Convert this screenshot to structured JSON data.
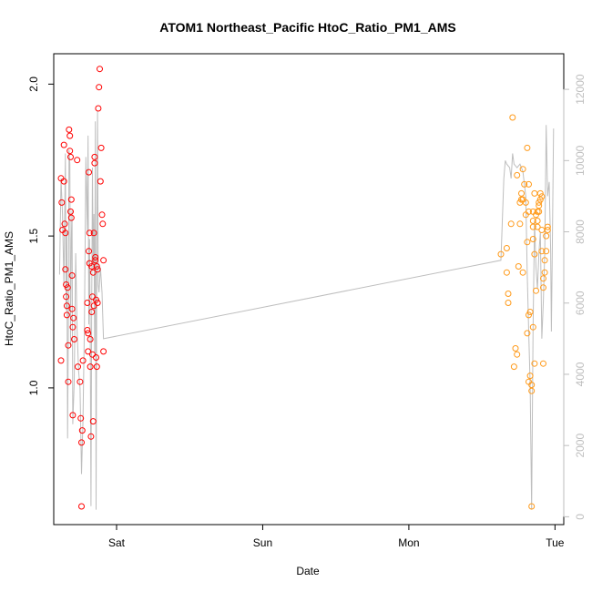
{
  "chart_data": {
    "type": "scatter",
    "title": "ATOM1 Northeast_Pacific HtoC_Ratio_PM1_AMS",
    "xlabel": "Date",
    "ylabel": "HtoC_Ratio_PM1_AMS",
    "x_ticks": [
      "Sat",
      "Sun",
      "Mon",
      "Tue"
    ],
    "y_ticks": [
      "1.0",
      "1.5",
      "2.0"
    ],
    "y_right_ticks": [
      "0",
      "2000",
      "4000",
      "6000",
      "8000",
      "10000",
      "12000"
    ],
    "xlim": [
      -0.43,
      3.06
    ],
    "ylim": [
      0.55,
      2.1
    ],
    "y_right_lim": [
      -220,
      13000
    ],
    "grid": false,
    "colors": {
      "series1": "#ff0000",
      "series2": "#ff9a1a",
      "line": "#bebebe",
      "axis": "#000000",
      "right_axis": "#bebebe"
    },
    "series": [
      {
        "points": [
          [
            -0.38,
            1.09
          ],
          [
            -0.38,
            1.69
          ],
          [
            -0.375,
            1.61
          ],
          [
            -0.37,
            1.52
          ],
          [
            -0.36,
            1.8
          ],
          [
            -0.36,
            1.68
          ],
          [
            -0.355,
            1.54
          ],
          [
            -0.35,
            1.39
          ],
          [
            -0.35,
            1.51
          ],
          [
            -0.345,
            1.34
          ],
          [
            -0.345,
            1.3
          ],
          [
            -0.34,
            1.24
          ],
          [
            -0.34,
            1.27
          ],
          [
            -0.335,
            1.33
          ],
          [
            -0.33,
            1.14
          ],
          [
            -0.33,
            1.02
          ],
          [
            -0.325,
            1.85
          ],
          [
            -0.32,
            1.83
          ],
          [
            -0.32,
            1.78
          ],
          [
            -0.315,
            1.76
          ],
          [
            -0.315,
            1.58
          ],
          [
            -0.31,
            1.56
          ],
          [
            -0.31,
            1.62
          ],
          [
            -0.305,
            1.37
          ],
          [
            -0.305,
            1.26
          ],
          [
            -0.3,
            0.91
          ],
          [
            -0.3,
            1.2
          ],
          [
            -0.295,
            1.23
          ],
          [
            -0.29,
            1.16
          ],
          [
            -0.27,
            1.75
          ],
          [
            -0.265,
            1.07
          ],
          [
            -0.25,
            1.02
          ],
          [
            -0.245,
            0.9
          ],
          [
            -0.24,
            0.61
          ],
          [
            -0.24,
            0.82
          ],
          [
            -0.235,
            0.86
          ],
          [
            -0.23,
            1.09
          ],
          [
            -0.2,
            1.28
          ],
          [
            -0.2,
            1.19
          ],
          [
            -0.195,
            1.18
          ],
          [
            -0.195,
            1.12
          ],
          [
            -0.19,
            1.71
          ],
          [
            -0.19,
            1.45
          ],
          [
            -0.185,
            1.41
          ],
          [
            -0.185,
            1.51
          ],
          [
            -0.18,
            1.16
          ],
          [
            -0.18,
            1.07
          ],
          [
            -0.175,
            0.84
          ],
          [
            -0.17,
            1.4
          ],
          [
            -0.17,
            1.25
          ],
          [
            -0.165,
            1.3
          ],
          [
            -0.165,
            1.11
          ],
          [
            -0.16,
            0.89
          ],
          [
            -0.16,
            1.38
          ],
          [
            -0.155,
            1.27
          ],
          [
            -0.155,
            1.51
          ],
          [
            -0.15,
            1.76
          ],
          [
            -0.15,
            1.74
          ],
          [
            -0.145,
            1.43
          ],
          [
            -0.145,
            1.42
          ],
          [
            -0.14,
            1.29
          ],
          [
            -0.14,
            1.1
          ],
          [
            -0.135,
            1.07
          ],
          [
            -0.135,
            1.4
          ],
          [
            -0.13,
            1.39
          ],
          [
            -0.13,
            1.28
          ],
          [
            -0.125,
            1.92
          ],
          [
            -0.12,
            1.99
          ],
          [
            -0.115,
            2.05
          ],
          [
            -0.11,
            1.68
          ],
          [
            -0.105,
            1.79
          ],
          [
            -0.1,
            1.57
          ],
          [
            -0.095,
            1.54
          ],
          [
            -0.09,
            1.42
          ],
          [
            -0.09,
            1.12
          ]
        ]
      },
      {
        "points": [
          [
            2.63,
            1.44
          ],
          [
            2.67,
            1.46
          ],
          [
            2.67,
            1.38
          ],
          [
            2.68,
            1.28
          ],
          [
            2.68,
            1.31
          ],
          [
            2.7,
            1.54
          ],
          [
            2.71,
            1.89
          ],
          [
            2.72,
            1.07
          ],
          [
            2.73,
            1.13
          ],
          [
            2.74,
            1.7
          ],
          [
            2.74,
            1.11
          ],
          [
            2.75,
            1.4
          ],
          [
            2.76,
            1.61
          ],
          [
            2.76,
            1.54
          ],
          [
            2.77,
            1.64
          ],
          [
            2.77,
            1.62
          ],
          [
            2.78,
            1.72
          ],
          [
            2.78,
            1.62
          ],
          [
            2.78,
            1.38
          ],
          [
            2.79,
            1.67
          ],
          [
            2.8,
            1.57
          ],
          [
            2.8,
            1.61
          ],
          [
            2.81,
            1.79
          ],
          [
            2.81,
            1.48
          ],
          [
            2.81,
            1.18
          ],
          [
            2.82,
            1.67
          ],
          [
            2.82,
            1.58
          ],
          [
            2.82,
            1.24
          ],
          [
            2.82,
            1.02
          ],
          [
            2.83,
            1.04
          ],
          [
            2.83,
            1.25
          ],
          [
            2.84,
            1.01
          ],
          [
            2.84,
            0.99
          ],
          [
            2.84,
            0.61
          ],
          [
            2.85,
            1.58
          ],
          [
            2.85,
            1.55
          ],
          [
            2.85,
            1.53
          ],
          [
            2.85,
            1.49
          ],
          [
            2.85,
            1.2
          ],
          [
            2.86,
            1.44
          ],
          [
            2.86,
            1.08
          ],
          [
            2.86,
            1.64
          ],
          [
            2.87,
            1.32
          ],
          [
            2.87,
            1.57
          ],
          [
            2.88,
            1.58
          ],
          [
            2.88,
            1.55
          ],
          [
            2.88,
            1.53
          ],
          [
            2.89,
            1.6
          ],
          [
            2.89,
            1.61
          ],
          [
            2.89,
            1.58
          ],
          [
            2.9,
            1.64
          ],
          [
            2.9,
            1.62
          ],
          [
            2.91,
            1.63
          ],
          [
            2.91,
            1.52
          ],
          [
            2.91,
            1.45
          ],
          [
            2.92,
            1.36
          ],
          [
            2.92,
            1.33
          ],
          [
            2.92,
            1.08
          ],
          [
            2.93,
            1.38
          ],
          [
            2.93,
            1.42
          ],
          [
            2.94,
            1.45
          ],
          [
            2.94,
            1.5
          ],
          [
            2.95,
            1.53
          ],
          [
            2.95,
            1.52
          ]
        ]
      }
    ],
    "line_series": {
      "points": [
        [
          -0.39,
          6800
        ],
        [
          -0.38,
          9500
        ],
        [
          -0.37,
          8500
        ],
        [
          -0.36,
          6500
        ],
        [
          -0.35,
          10200
        ],
        [
          -0.345,
          5800
        ],
        [
          -0.34,
          8000
        ],
        [
          -0.335,
          2200
        ],
        [
          -0.33,
          5200
        ],
        [
          -0.325,
          10300
        ],
        [
          -0.32,
          9900
        ],
        [
          -0.315,
          4800
        ],
        [
          -0.31,
          7800
        ],
        [
          -0.305,
          8600
        ],
        [
          -0.3,
          2600
        ],
        [
          -0.29,
          3800
        ],
        [
          -0.28,
          7400
        ],
        [
          -0.27,
          5200
        ],
        [
          -0.26,
          4100
        ],
        [
          -0.25,
          3600
        ],
        [
          -0.24,
          1200
        ],
        [
          -0.23,
          2700
        ],
        [
          -0.22,
          5400
        ],
        [
          -0.21,
          10100
        ],
        [
          -0.2,
          8000
        ],
        [
          -0.195,
          10700
        ],
        [
          -0.19,
          5400
        ],
        [
          -0.185,
          7800
        ],
        [
          -0.18,
          5100
        ],
        [
          -0.175,
          300
        ],
        [
          -0.17,
          5900
        ],
        [
          -0.165,
          9800
        ],
        [
          -0.16,
          7000
        ],
        [
          -0.155,
          8500
        ],
        [
          -0.15,
          4600
        ],
        [
          -0.145,
          11100
        ],
        [
          -0.14,
          200
        ],
        [
          -0.135,
          7200
        ],
        [
          -0.13,
          11400
        ],
        [
          -0.125,
          6500
        ],
        [
          -0.12,
          6300
        ],
        [
          -0.11,
          7000
        ],
        [
          -0.1,
          6300
        ],
        [
          -0.09,
          5000
        ],
        [
          2.63,
          7200
        ],
        [
          2.65,
          9500
        ],
        [
          2.66,
          10000
        ],
        [
          2.67,
          9900
        ],
        [
          2.69,
          9800
        ],
        [
          2.7,
          9500
        ],
        [
          2.71,
          10200
        ],
        [
          2.72,
          9900
        ],
        [
          2.74,
          9800
        ],
        [
          2.76,
          9900
        ],
        [
          2.78,
          9700
        ],
        [
          2.8,
          9000
        ],
        [
          2.81,
          6800
        ],
        [
          2.82,
          5200
        ],
        [
          2.83,
          3700
        ],
        [
          2.84,
          200
        ],
        [
          2.85,
          5300
        ],
        [
          2.86,
          8300
        ],
        [
          2.87,
          7000
        ],
        [
          2.88,
          6400
        ],
        [
          2.89,
          7400
        ],
        [
          2.9,
          8000
        ],
        [
          2.91,
          5000
        ],
        [
          2.92,
          6000
        ],
        [
          2.93,
          7400
        ],
        [
          2.94,
          11000
        ],
        [
          2.95,
          9000
        ],
        [
          2.96,
          9400
        ],
        [
          2.97,
          7500
        ],
        [
          2.975,
          5200
        ],
        [
          2.98,
          7000
        ],
        [
          2.99,
          10900
        ]
      ]
    }
  }
}
